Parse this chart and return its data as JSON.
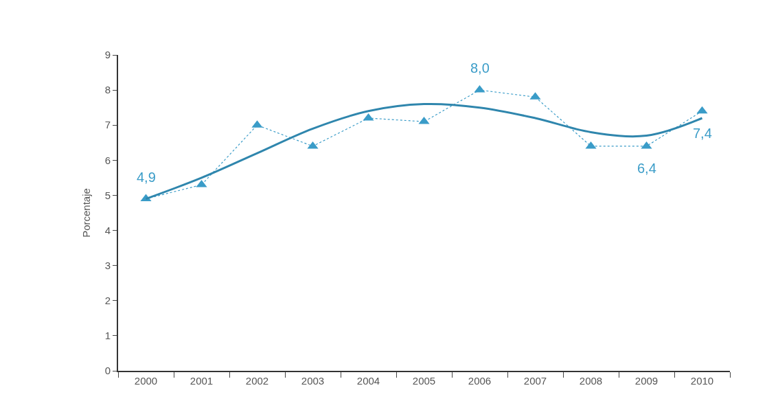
{
  "chart_data": {
    "type": "line",
    "ylabel": "Porcentaje",
    "categories": [
      "2000",
      "2001",
      "2002",
      "2003",
      "2004",
      "2005",
      "2006",
      "2007",
      "2008",
      "2009",
      "2010"
    ],
    "series": [
      {
        "color": "#3a9cc8",
        "marker": "triangle",
        "line_style": "dotted",
        "values": [
          4.9,
          5.3,
          7.0,
          6.4,
          7.2,
          7.1,
          8.0,
          7.8,
          6.4,
          6.4,
          7.4
        ],
        "value_labels": [
          "4,9",
          null,
          null,
          null,
          null,
          null,
          "8,0",
          null,
          null,
          "6,4",
          "7,4"
        ]
      },
      {
        "color": "#2f86ad",
        "marker": "none",
        "line_style": "solid",
        "values": [
          4.9,
          5.5,
          6.2,
          6.9,
          7.4,
          7.6,
          7.5,
          7.2,
          6.8,
          6.7,
          7.2
        ]
      }
    ],
    "ylim": [
      0,
      9
    ],
    "yticks": [
      0,
      1,
      2,
      3,
      4,
      5,
      6,
      7,
      8,
      9
    ],
    "grid": false
  }
}
